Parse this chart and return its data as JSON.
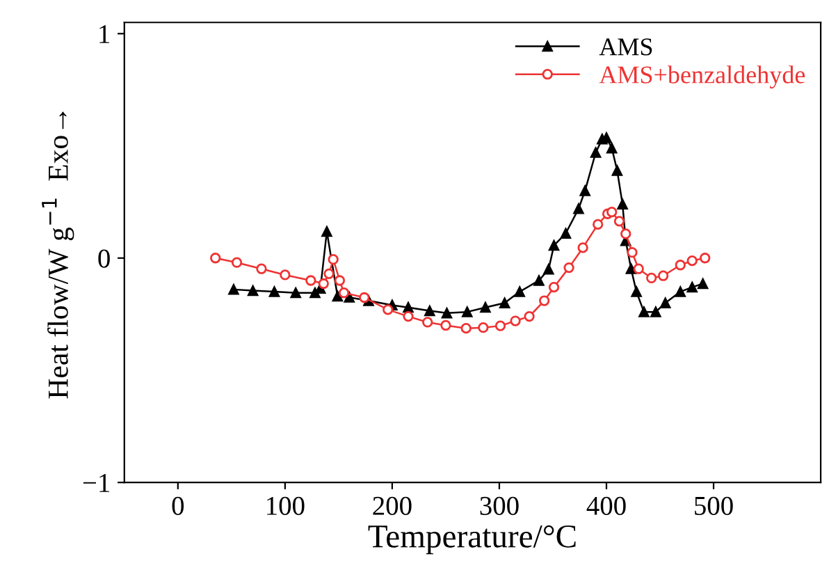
{
  "chart_data": {
    "type": "line",
    "xlabel": "Temperature/°C",
    "ylabel": "Heat flow/W g$^{−1}$  Exo→",
    "xlim": [
      -50,
      600
    ],
    "xticks": [
      0,
      100,
      200,
      300,
      400,
      500
    ],
    "ylim": [
      -1,
      1.05
    ],
    "yticks": [
      {
        "value": -1,
        "label": "−1"
      },
      0,
      1
    ],
    "legend": "top right",
    "grid": false,
    "series": [
      {
        "name": "AMS",
        "color": "#000000",
        "marker": "triangle",
        "x": [
          52,
          70,
          90,
          110,
          128,
          133,
          139,
          149,
          160,
          178,
          200,
          215,
          235,
          251,
          270,
          287,
          305,
          319,
          337,
          346,
          351,
          362,
          374,
          380,
          390,
          396,
          400,
          405,
          410,
          415,
          418,
          423,
          428,
          435,
          446,
          455,
          469,
          480,
          490
        ],
        "values": [
          -0.14,
          -0.145,
          -0.15,
          -0.155,
          -0.155,
          -0.135,
          0.118,
          -0.17,
          -0.175,
          -0.19,
          -0.21,
          -0.22,
          -0.235,
          -0.245,
          -0.24,
          -0.22,
          -0.2,
          -0.15,
          -0.1,
          -0.05,
          0.056,
          0.11,
          0.22,
          0.3,
          0.47,
          0.53,
          0.536,
          0.49,
          0.39,
          0.24,
          0.077,
          -0.048,
          -0.15,
          -0.24,
          -0.24,
          -0.2,
          -0.15,
          -0.13,
          -0.114
        ]
      },
      {
        "name": "AMS+benzaldehyde",
        "color": "#ee3333",
        "marker": "circle",
        "x": [
          35,
          55,
          78,
          100,
          124,
          136,
          141,
          145,
          151,
          155,
          174,
          196,
          215,
          233,
          250,
          269,
          285,
          301,
          315,
          328,
          342,
          351,
          365,
          378,
          392,
          401,
          405,
          412,
          418,
          424,
          430,
          442,
          453,
          469,
          480,
          492
        ],
        "values": [
          0.0,
          -0.02,
          -0.048,
          -0.075,
          -0.1,
          -0.114,
          -0.07,
          -0.006,
          -0.1,
          -0.155,
          -0.176,
          -0.23,
          -0.26,
          -0.286,
          -0.3,
          -0.313,
          -0.31,
          -0.302,
          -0.28,
          -0.26,
          -0.19,
          -0.13,
          -0.043,
          0.046,
          0.15,
          0.197,
          0.205,
          0.164,
          0.108,
          0.025,
          -0.048,
          -0.089,
          -0.079,
          -0.031,
          -0.012,
          0.0
        ]
      }
    ]
  }
}
